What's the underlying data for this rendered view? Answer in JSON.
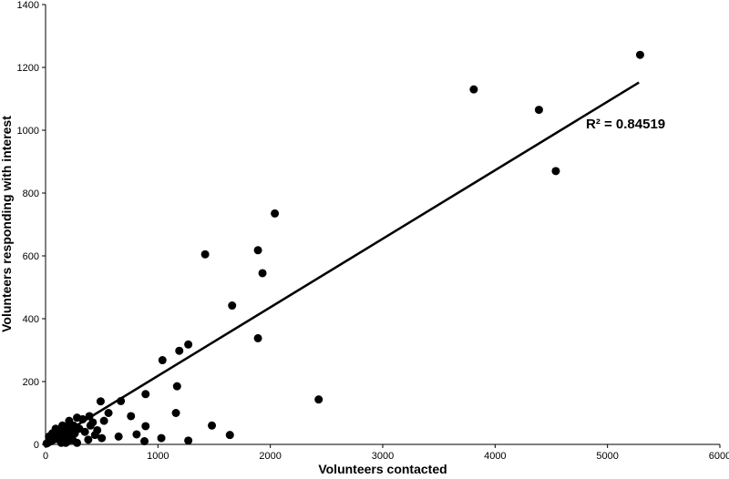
{
  "chart_data": {
    "type": "scatter",
    "title": "",
    "xlabel": "Volunteers contacted",
    "ylabel": "Volunteers responding with interest",
    "xlim": [
      0,
      6000
    ],
    "ylim": [
      0,
      1400
    ],
    "xticks": [
      0,
      1000,
      2000,
      3000,
      4000,
      5000,
      6000
    ],
    "yticks": [
      0,
      200,
      400,
      600,
      800,
      1000,
      1200,
      1400
    ],
    "grid": false,
    "legend": "none",
    "point_color": "#000000",
    "trendline": {
      "type": "linear",
      "x": [
        0,
        5280
      ],
      "y": [
        0,
        1152
      ],
      "color": "#000000"
    },
    "annotation": "R² = 0.84519",
    "points": [
      [
        5290,
        1240
      ],
      [
        3810,
        1130
      ],
      [
        4390,
        1065
      ],
      [
        4540,
        870
      ],
      [
        2040,
        735
      ],
      [
        1420,
        605
      ],
      [
        1890,
        618
      ],
      [
        1930,
        545
      ],
      [
        1660,
        442
      ],
      [
        1890,
        338
      ],
      [
        1270,
        318
      ],
      [
        1190,
        298
      ],
      [
        1040,
        268
      ],
      [
        2430,
        143
      ],
      [
        1170,
        185
      ],
      [
        890,
        160
      ],
      [
        670,
        138
      ],
      [
        490,
        137
      ],
      [
        560,
        100
      ],
      [
        760,
        90
      ],
      [
        1160,
        100
      ],
      [
        1480,
        60
      ],
      [
        1640,
        30
      ],
      [
        1270,
        12
      ],
      [
        1030,
        20
      ],
      [
        880,
        10
      ],
      [
        890,
        58
      ],
      [
        650,
        25
      ],
      [
        810,
        32
      ],
      [
        500,
        20
      ],
      [
        460,
        45
      ],
      [
        420,
        70
      ],
      [
        390,
        90
      ],
      [
        330,
        80
      ],
      [
        280,
        85
      ],
      [
        250,
        60
      ],
      [
        230,
        45
      ],
      [
        210,
        75
      ],
      [
        190,
        55
      ],
      [
        170,
        40
      ],
      [
        150,
        60
      ],
      [
        130,
        35
      ],
      [
        110,
        45
      ],
      [
        100,
        25
      ],
      [
        80,
        30
      ],
      [
        70,
        15
      ],
      [
        60,
        20
      ],
      [
        50,
        10
      ],
      [
        40,
        15
      ],
      [
        30,
        8
      ],
      [
        20,
        5
      ],
      [
        10,
        3
      ],
      [
        120,
        15
      ],
      [
        140,
        5
      ],
      [
        160,
        20
      ],
      [
        180,
        30
      ],
      [
        200,
        10
      ],
      [
        220,
        25
      ],
      [
        240,
        15
      ],
      [
        260,
        35
      ],
      [
        300,
        50
      ],
      [
        350,
        40
      ],
      [
        380,
        15
      ],
      [
        280,
        5
      ],
      [
        400,
        60
      ],
      [
        440,
        30
      ],
      [
        90,
        50
      ],
      [
        60,
        35
      ],
      [
        30,
        25
      ],
      [
        180,
        5
      ],
      [
        520,
        75
      ]
    ]
  }
}
